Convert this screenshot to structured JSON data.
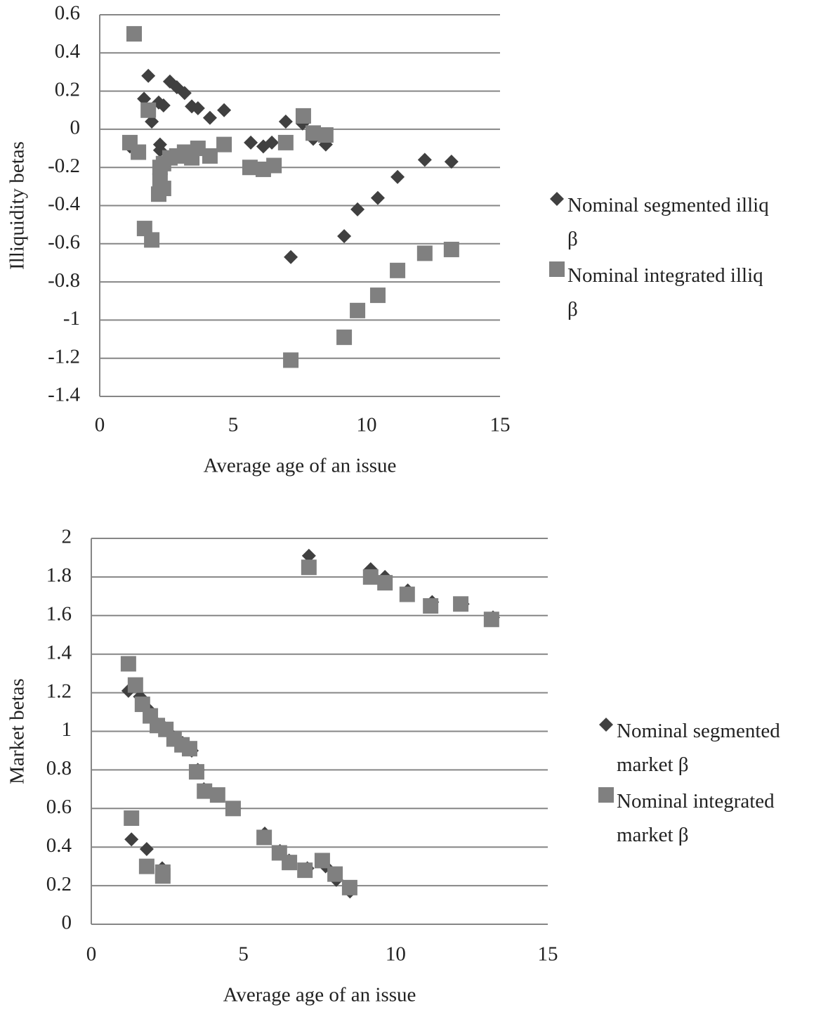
{
  "chart_data": [
    {
      "type": "scatter",
      "x_label": "Average age of an issue",
      "y_label": "Illiquidity betas",
      "xlim": [
        0,
        15
      ],
      "xticks": [
        0,
        5,
        10,
        15
      ],
      "ylim": [
        -1.4,
        0.6
      ],
      "yticks": [
        0.6,
        0.4,
        0.2,
        0,
        -0.2,
        -0.4,
        -0.6,
        -0.8,
        -1,
        -1.2,
        -1.4
      ],
      "grid": true,
      "series": [
        {
          "name": "Nominal segmented illiq β",
          "color": "#404040",
          "marker": "diamond",
          "x": [
            1.29,
            1.66,
            1.82,
            1.95,
            2.21,
            2.39,
            2.26,
            2.26,
            2.63,
            2.89,
            3.18,
            3.45,
            3.68,
            4.13,
            4.66,
            5.66,
            6.13,
            6.45,
            6.97,
            7.16,
            7.6,
            8.0,
            8.47,
            9.16,
            9.66,
            10.42,
            11.16,
            12.18,
            13.18,
            1.13
          ],
          "y": [
            0.5,
            0.16,
            0.28,
            0.04,
            0.14,
            0.125,
            -0.08,
            -0.11,
            0.25,
            0.22,
            0.19,
            0.12,
            0.11,
            0.06,
            0.1,
            -0.07,
            -0.09,
            -0.07,
            0.04,
            -0.67,
            0.03,
            -0.05,
            -0.08,
            -0.56,
            -0.42,
            -0.36,
            -0.25,
            -0.16,
            -0.17,
            -0.09
          ]
        },
        {
          "name": "Nominal integrated illiq β",
          "color": "#808080",
          "marker": "square",
          "x": [
            1.29,
            1.13,
            1.45,
            1.68,
            1.82,
            1.95,
            2.21,
            2.39,
            2.26,
            2.26,
            2.39,
            2.63,
            2.89,
            3.18,
            3.45,
            3.68,
            4.13,
            4.66,
            5.63,
            6.13,
            6.53,
            6.97,
            7.16,
            7.63,
            8.0,
            8.47,
            9.16,
            9.66,
            10.42,
            11.16,
            12.18,
            13.18
          ],
          "y": [
            0.5,
            -0.07,
            -0.12,
            -0.52,
            0.1,
            -0.58,
            -0.34,
            -0.31,
            -0.27,
            -0.2,
            -0.18,
            -0.15,
            -0.14,
            -0.12,
            -0.15,
            -0.1,
            -0.14,
            -0.08,
            -0.2,
            -0.21,
            -0.19,
            -0.07,
            -1.21,
            0.07,
            -0.02,
            -0.03,
            -1.09,
            -0.95,
            -0.87,
            -0.74,
            -0.65,
            -0.63
          ]
        }
      ]
    },
    {
      "type": "scatter",
      "x_label": "Average age of an issue",
      "y_label": "Market betas",
      "xlim": [
        0,
        15
      ],
      "xticks": [
        0,
        5,
        10,
        15
      ],
      "ylim": [
        0,
        2
      ],
      "yticks": [
        2,
        1.8,
        1.6,
        1.4,
        1.2,
        1,
        0.8,
        0.6,
        0.4,
        0.2,
        0
      ],
      "grid": true,
      "series": [
        {
          "name": "Nominal segmented market β",
          "color": "#404040",
          "marker": "diamond",
          "x": [
            1.22,
            1.32,
            1.82,
            2.33,
            7.15,
            9.18,
            9.65,
            10.4,
            11.2,
            5.7,
            1.6,
            1.9,
            2.1,
            2.4,
            2.7,
            3.0,
            3.3,
            3.5,
            3.7,
            4.1,
            4.7,
            6.2,
            6.5,
            7.1,
            7.7,
            8.05,
            8.5,
            12.2,
            13.2
          ],
          "y": [
            1.21,
            0.44,
            0.39,
            0.29,
            1.91,
            1.84,
            1.8,
            1.73,
            1.67,
            0.47,
            1.18,
            1.11,
            1.05,
            1.02,
            0.97,
            0.94,
            0.9,
            0.8,
            0.7,
            0.67,
            0.6,
            0.38,
            0.33,
            0.29,
            0.3,
            0.23,
            0.17,
            1.66,
            1.59
          ]
        },
        {
          "name": "Nominal integrated market β",
          "color": "#808080",
          "marker": "square",
          "x": [
            1.22,
            1.45,
            1.68,
            1.94,
            2.17,
            2.45,
            2.72,
            2.98,
            3.23,
            3.46,
            3.72,
            4.15,
            4.66,
            1.32,
            1.82,
            2.35,
            2.35,
            5.68,
            6.18,
            6.51,
            7.02,
            7.59,
            8.01,
            8.49,
            7.15,
            9.18,
            9.65,
            10.38,
            11.15,
            12.14,
            13.15
          ],
          "y": [
            1.35,
            1.24,
            1.14,
            1.08,
            1.03,
            1.01,
            0.96,
            0.93,
            0.91,
            0.79,
            0.69,
            0.67,
            0.6,
            0.55,
            0.3,
            0.25,
            0.27,
            0.45,
            0.37,
            0.32,
            0.28,
            0.33,
            0.26,
            0.19,
            1.85,
            1.8,
            1.77,
            1.71,
            1.65,
            1.66,
            1.58
          ]
        }
      ]
    }
  ]
}
